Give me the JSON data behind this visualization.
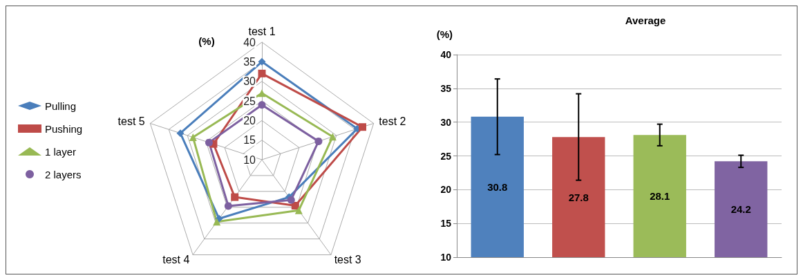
{
  "chart_data": [
    {
      "type": "radar",
      "ylabel": "(%)",
      "categories": [
        "test 1",
        "test 2",
        "test 3",
        "test 4",
        "test 5"
      ],
      "ylim": [
        10,
        40
      ],
      "yticks": [
        10,
        15,
        20,
        25,
        30,
        35,
        40
      ],
      "legend": "left",
      "series": [
        {
          "name": "Pulling",
          "color": "#4a7ebb",
          "marker": "diamond",
          "values": [
            35,
            35.6,
            21.8,
            28.6,
            31.9
          ]
        },
        {
          "name": "Pushing",
          "color": "#be4b48",
          "marker": "square",
          "values": [
            32,
            37,
            24.5,
            21.8,
            23
          ]
        },
        {
          "name": "1 layer",
          "color": "#98b954",
          "marker": "triangle",
          "values": [
            27,
            29,
            26,
            29.6,
            28.5
          ]
        },
        {
          "name": "2 layers",
          "color": "#7d60a0",
          "marker": "circle",
          "values": [
            24,
            25.2,
            22.7,
            24.6,
            24.2
          ]
        }
      ]
    },
    {
      "type": "bar",
      "title": "Average",
      "ylabel": "(%)",
      "categories": [
        null,
        null,
        null,
        null
      ],
      "values": [
        30.8,
        27.8,
        28.1,
        24.2
      ],
      "colors": [
        "#4f81bd",
        "#c0504d",
        "#9bbb59",
        "#8064a2"
      ],
      "errors": [
        5.6,
        6.4,
        1.6,
        0.9
      ],
      "data_labels": true,
      "ylim": [
        10,
        40
      ],
      "yticks": [
        10,
        15,
        20,
        25,
        30,
        35,
        40
      ],
      "grid": "y"
    }
  ]
}
